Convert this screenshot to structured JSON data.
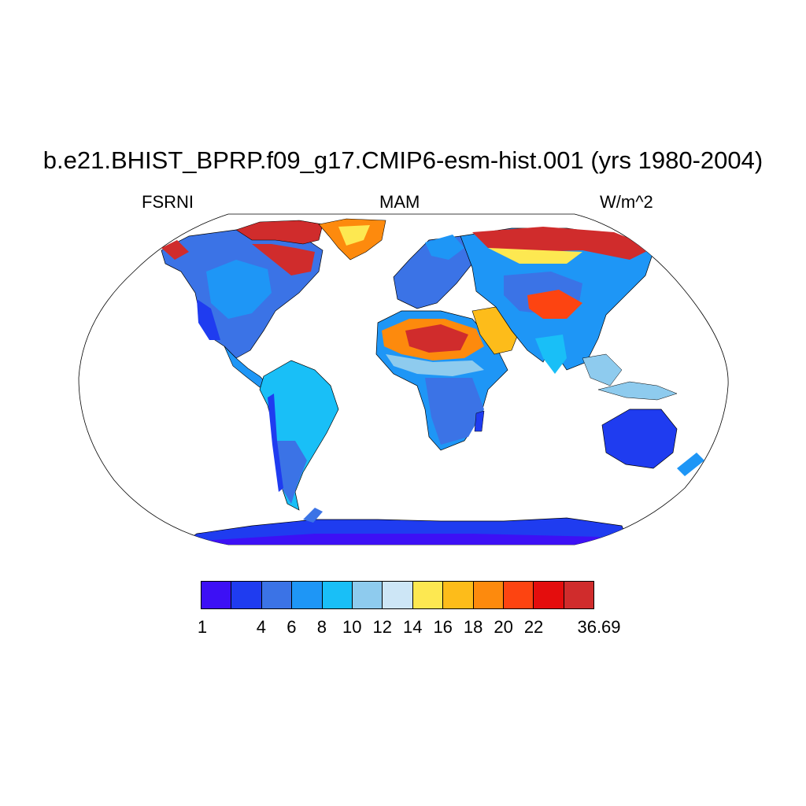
{
  "title": "b.e21.BHIST_BPRP.f09_g17.CMIP6-esm-hist.001 (yrs 1980-2004)",
  "subtitle_left": "FSRNI",
  "subtitle_center": "MAM",
  "subtitle_right": "W/m^2",
  "colorbar": {
    "colors": [
      "#3d10f5",
      "#1f3cf0",
      "#3b73e6",
      "#1e96f6",
      "#19bff7",
      "#8ecbee",
      "#cde6f6",
      "#fde851",
      "#fdbc1a",
      "#fd8a0d",
      "#fd4411",
      "#e40d0d",
      "#d02c2c"
    ],
    "labels": [
      "1",
      "4",
      "6",
      "8",
      "10",
      "12",
      "14",
      "16",
      "18",
      "20",
      "22",
      "36.69"
    ],
    "label_boundaries": [
      0,
      2,
      3,
      4,
      5,
      6,
      7,
      8,
      9,
      10,
      11,
      13
    ]
  },
  "map_colors": {
    "ocean": "#ffffff",
    "coast": "#000000"
  }
}
